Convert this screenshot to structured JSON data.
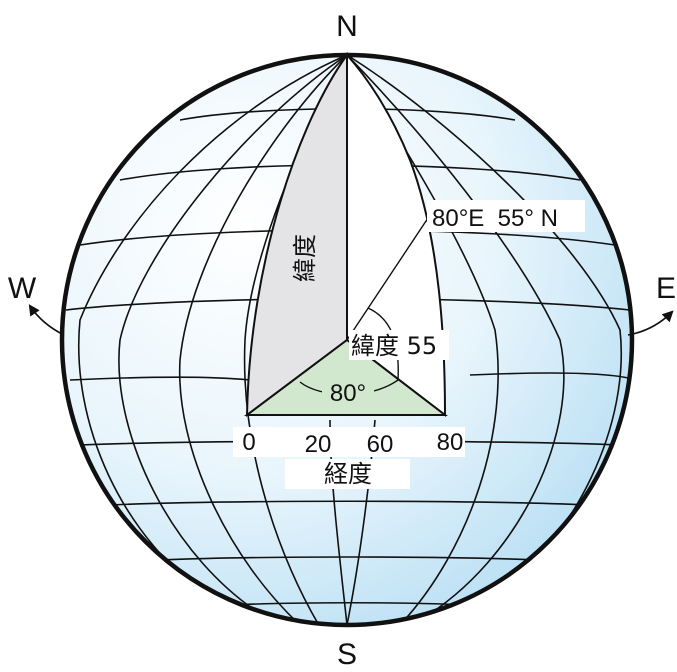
{
  "compass": {
    "north": "N",
    "south": "S",
    "west": "W",
    "east": "E"
  },
  "labels": {
    "coordinate": "80°E  55° N",
    "latitude_vertical": "緯度",
    "latitude_angle": "緯度 55",
    "longitude_angle": "80°",
    "longitude": "経度",
    "ticks": [
      "0",
      "20",
      "60",
      "80"
    ]
  },
  "colors": {
    "ocean": "#cfe9f8",
    "latitude_wedge": "#e4e4e6",
    "longitude_wedge": "#d1e8cf",
    "outline": "#111111"
  }
}
